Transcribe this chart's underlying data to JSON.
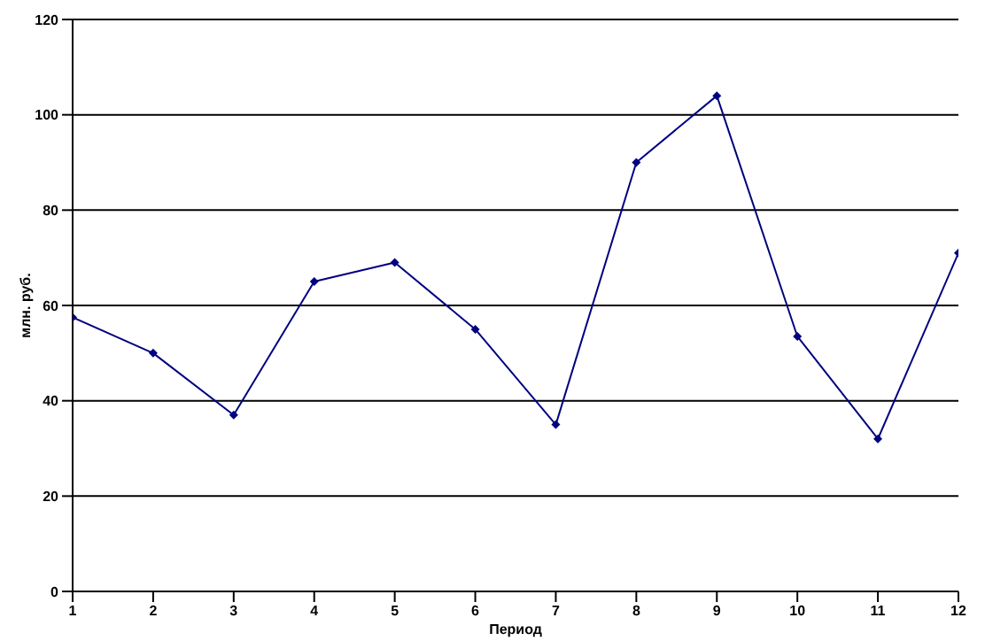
{
  "chart_data": {
    "type": "line",
    "xlabel": "Период",
    "ylabel": "млн. руб.",
    "x": [
      1,
      2,
      3,
      4,
      5,
      6,
      7,
      8,
      9,
      10,
      11,
      12
    ],
    "series": [
      {
        "color": "#000080",
        "values": [
          57.5,
          50,
          37,
          65,
          69,
          55,
          35,
          90,
          104,
          53.5,
          32,
          71
        ]
      }
    ],
    "xlim": [
      1,
      12
    ],
    "xticks": [
      1,
      2,
      3,
      4,
      5,
      6,
      7,
      8,
      9,
      10,
      11,
      12
    ],
    "ylim": [
      0,
      120
    ],
    "yticks": [
      0,
      20,
      40,
      60,
      80,
      100,
      120
    ],
    "grid": "y",
    "legend": false,
    "marker": "diamond",
    "line_style": "solid"
  }
}
